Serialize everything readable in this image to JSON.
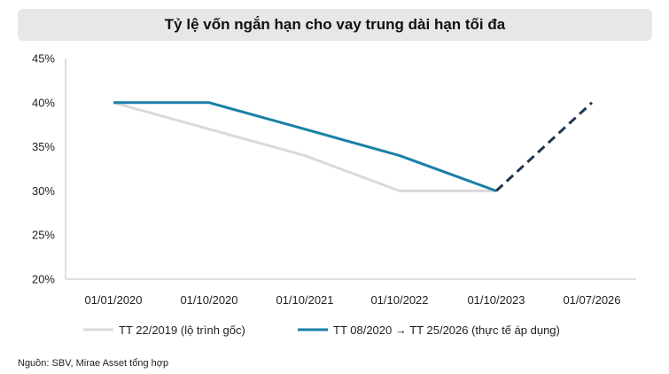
{
  "chart_data": {
    "type": "line",
    "title": "Tỷ lệ vốn ngắn hạn cho vay trung dài hạn tối đa",
    "categories": [
      "01/01/2020",
      "01/10/2020",
      "01/10/2021",
      "01/10/2022",
      "01/10/2023",
      "01/07/2026"
    ],
    "y_ticks": [
      "45%",
      "40%",
      "35%",
      "30%",
      "25%",
      "20%"
    ],
    "ylim": [
      20,
      45
    ],
    "y_unit": "%",
    "grid": false,
    "legend_position": "bottom",
    "series": [
      {
        "name": "TT 22/2019 (lộ trình gốc)",
        "color": "#d9d9d9",
        "values": [
          40,
          37,
          34,
          30,
          30,
          null
        ]
      },
      {
        "name": "TT 08/2020 → TT 25/2026 (thực tế áp dụng)",
        "color": "#1a7fa8",
        "values": [
          40,
          40,
          37,
          34,
          30,
          null
        ]
      },
      {
        "name": "",
        "color": "#1f3550",
        "style": "dashed",
        "values": [
          null,
          null,
          null,
          null,
          30,
          40
        ]
      }
    ]
  },
  "source": "Nguồn: SBV, Mirae Asset tổng hợp"
}
